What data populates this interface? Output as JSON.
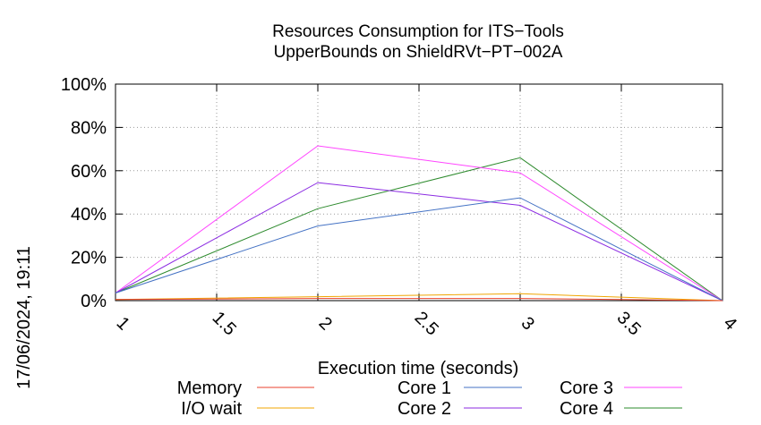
{
  "chart_data": {
    "type": "line",
    "title": "Resources Consumption for ITS−Tools",
    "subtitle": "UpperBounds on ShieldRVt−PT−002A",
    "xlabel": "Execution time (seconds)",
    "ylabel": "",
    "xlim": [
      1,
      4
    ],
    "ylim": [
      0,
      100
    ],
    "grid": true,
    "legend_position": "bottom",
    "x_ticks": [
      "1",
      "1.5",
      "2",
      "2.5",
      "3",
      "3.5",
      "4"
    ],
    "y_ticks": [
      "0%",
      "20%",
      "40%",
      "60%",
      "80%",
      "100%"
    ],
    "x": [
      1,
      2,
      3,
      4
    ],
    "series": [
      {
        "name": "Memory",
        "color": "#e8412c",
        "values": [
          0.5,
          1.0,
          1.0,
          0
        ]
      },
      {
        "name": "I/O wait",
        "color": "#f0a500",
        "values": [
          0.5,
          1.8,
          3.2,
          0
        ]
      },
      {
        "name": "Core 1",
        "color": "#4472c4",
        "values": [
          3.5,
          34.5,
          47.5,
          0
        ]
      },
      {
        "name": "Core 2",
        "color": "#8b2be2",
        "values": [
          3.5,
          54.5,
          44.0,
          0
        ]
      },
      {
        "name": "Core 3",
        "color": "#ff44ff",
        "values": [
          3.5,
          71.5,
          59.0,
          0
        ]
      },
      {
        "name": "Core 4",
        "color": "#2e8b2e",
        "values": [
          3.5,
          42.5,
          66.0,
          0
        ]
      }
    ]
  },
  "timestamp": "17/06/2024, 19:11"
}
